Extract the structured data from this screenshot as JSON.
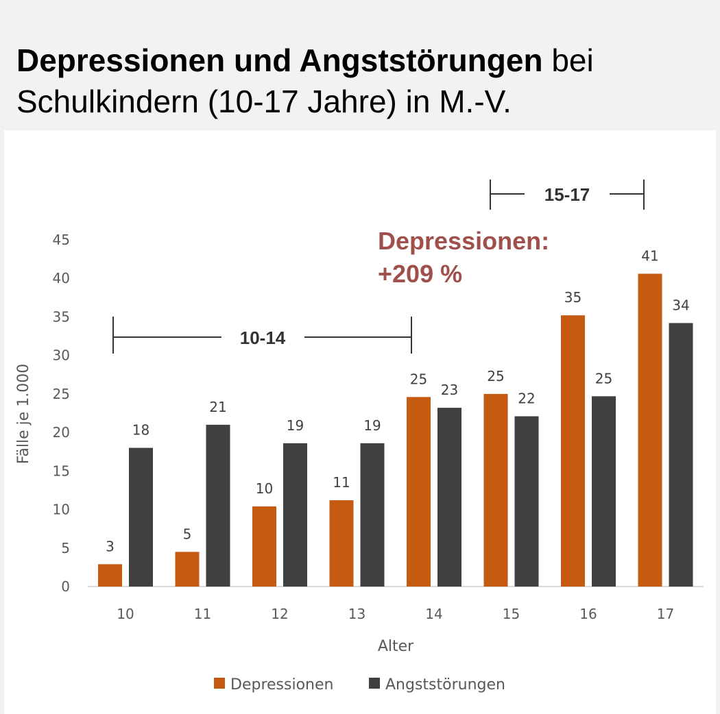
{
  "title": {
    "bold": "Depressionen und Angststörungen",
    "normal_1": " bei",
    "normal_2": "Schulkindern (10-17 Jahre) in M.-V."
  },
  "chart_data": {
    "type": "bar",
    "categories": [
      "10",
      "11",
      "12",
      "13",
      "14",
      "15",
      "16",
      "17"
    ],
    "series": [
      {
        "name": "Depressionen",
        "color": "#c55a11",
        "values": [
          2.9,
          4.5,
          10.4,
          11.2,
          24.6,
          25.0,
          35.2,
          40.6
        ],
        "labels": [
          "3",
          "5",
          "10",
          "11",
          "25",
          "25",
          "35",
          "41"
        ]
      },
      {
        "name": "Angststörungen",
        "color": "#404040",
        "values": [
          18.0,
          21.0,
          18.6,
          18.6,
          23.2,
          22.1,
          24.7,
          34.2
        ],
        "labels": [
          "18",
          "21",
          "19",
          "19",
          "23",
          "22",
          "25",
          "34"
        ]
      }
    ],
    "xlabel": "Alter",
    "ylabel": "Fälle je 1.000",
    "ylim": [
      0,
      45
    ],
    "yticks": [
      0,
      5,
      10,
      15,
      20,
      25,
      30,
      35,
      40,
      45
    ],
    "legend_position": "bottom",
    "ranges": [
      {
        "label": "10-14",
        "from": "10",
        "to": "14"
      },
      {
        "label": "15-17",
        "from": "15",
        "to": "17"
      }
    ],
    "annotation": {
      "line1": "Depressionen:",
      "line2": "+209 %"
    }
  }
}
